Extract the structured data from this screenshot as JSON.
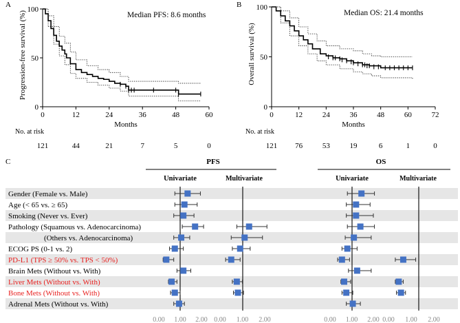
{
  "chart_data": [
    {
      "type": "line",
      "panel": "A",
      "title": "Median PFS: 8.6 months",
      "xlabel": "Months",
      "ylabel": "Progression-free survival (%)",
      "xlim": [
        0,
        60
      ],
      "ylim": [
        0,
        100
      ],
      "xticks": [
        0,
        12,
        24,
        36,
        48,
        60
      ],
      "yticks": [
        0,
        50,
        100
      ],
      "series": [
        {
          "name": "PFS",
          "style": "solid",
          "x": [
            0,
            1,
            2,
            3,
            4,
            5,
            6,
            7,
            8,
            8.6,
            10,
            12,
            14,
            16,
            18,
            20,
            22,
            24,
            26,
            28,
            30,
            31,
            33,
            36,
            40,
            44,
            48,
            49,
            50,
            52,
            57
          ],
          "y": [
            100,
            95,
            88,
            80,
            73,
            67,
            62,
            58,
            54,
            50,
            44,
            38,
            35,
            33,
            31,
            29,
            28,
            26,
            24,
            23,
            21,
            17,
            17,
            17,
            17,
            17,
            17,
            13,
            13,
            13,
            13
          ]
        },
        {
          "name": "95% CI upper",
          "style": "dotted",
          "x": [
            0,
            2,
            4,
            6,
            8,
            10,
            12,
            16,
            20,
            24,
            28,
            31,
            36,
            44,
            48,
            49,
            52,
            57
          ],
          "y": [
            100,
            93,
            82,
            72,
            65,
            56,
            48,
            42,
            38,
            35,
            31,
            26,
            26,
            26,
            26,
            24,
            24,
            24
          ]
        },
        {
          "name": "95% CI lower",
          "style": "dotted",
          "x": [
            0,
            2,
            4,
            6,
            8,
            10,
            12,
            16,
            20,
            24,
            28,
            31,
            36,
            44,
            48,
            49,
            52,
            57
          ],
          "y": [
            100,
            82,
            64,
            52,
            43,
            34,
            29,
            25,
            22,
            19,
            16,
            11,
            11,
            11,
            11,
            6,
            6,
            6
          ]
        }
      ],
      "censor_ticks": {
        "x": [
          28,
          30,
          31,
          32,
          33,
          40,
          48,
          49,
          57
        ],
        "y": [
          23,
          21,
          17,
          17,
          17,
          17,
          17,
          13,
          13
        ]
      },
      "risk_table": {
        "label": "No. at risk",
        "times": [
          0,
          12,
          24,
          36,
          48,
          60
        ],
        "counts": [
          "121",
          "44",
          "21",
          "7",
          "5",
          "0"
        ]
      }
    },
    {
      "type": "line",
      "panel": "B",
      "title": "Median OS: 21.4 months",
      "xlabel": "Months",
      "ylabel": "Overall survival (%)",
      "xlim": [
        0,
        72
      ],
      "ylim": [
        0,
        100
      ],
      "xticks": [
        0,
        12,
        24,
        36,
        48,
        60,
        72
      ],
      "yticks": [
        0,
        50,
        100
      ],
      "series": [
        {
          "name": "OS",
          "style": "solid",
          "x": [
            0,
            2,
            4,
            6,
            8,
            10,
            12,
            14,
            16,
            18,
            21.4,
            24,
            27,
            30,
            33,
            36,
            40,
            43,
            48,
            52,
            56,
            62
          ],
          "y": [
            100,
            96,
            91,
            86,
            81,
            76,
            71,
            67,
            63,
            58,
            53,
            51,
            49,
            48,
            46,
            44,
            42,
            41,
            39,
            39,
            39,
            39
          ]
        },
        {
          "name": "95% CI upper",
          "style": "dotted",
          "x": [
            0,
            4,
            8,
            12,
            16,
            20,
            24,
            30,
            36,
            40,
            44,
            48,
            62
          ],
          "y": [
            100,
            96,
            89,
            80,
            73,
            66,
            61,
            58,
            56,
            53,
            51,
            50,
            50
          ]
        },
        {
          "name": "95% CI lower",
          "style": "dotted",
          "x": [
            0,
            4,
            8,
            12,
            16,
            20,
            24,
            30,
            36,
            40,
            44,
            48,
            62
          ],
          "y": [
            100,
            84,
            71,
            61,
            53,
            46,
            42,
            38,
            35,
            33,
            31,
            29,
            28
          ]
        }
      ],
      "censor_ticks": {
        "x": [
          25,
          27,
          28,
          30,
          31,
          33,
          35,
          36,
          38,
          40,
          41,
          42,
          43,
          45,
          47,
          50,
          52,
          54,
          56,
          58,
          60,
          62
        ],
        "y": [
          50,
          49,
          49,
          48,
          47,
          46,
          45,
          44,
          43,
          42,
          42,
          41,
          41,
          40,
          40,
          39,
          39,
          39,
          39,
          39,
          39,
          39
        ]
      },
      "risk_table": {
        "label": "No. at risk",
        "times": [
          0,
          12,
          24,
          36,
          48,
          60,
          72
        ],
        "counts": [
          "121",
          "76",
          "53",
          "19",
          "6",
          "1",
          "0"
        ]
      }
    },
    {
      "type": "forest",
      "panel": "C",
      "groups": [
        "PFS",
        "OS"
      ],
      "subheaders": [
        "Univariate",
        "Multivariate"
      ],
      "xticks": [
        "0.00",
        "1.00",
        "2.00"
      ],
      "reference": 1.0,
      "rows": [
        {
          "label": "Gender (Female vs. Male)",
          "highlight": false,
          "pfs_uni": [
            1.35,
            0.75,
            1.95
          ],
          "pfs_multi": null,
          "os_uni": [
            1.45,
            0.8,
            2.05
          ],
          "os_multi": null
        },
        {
          "label": "Age (< 65 vs. ≥ 65)",
          "highlight": false,
          "pfs_uni": [
            1.2,
            0.75,
            1.8
          ],
          "pfs_multi": null,
          "os_uni": [
            1.2,
            0.75,
            1.85
          ],
          "os_multi": null
        },
        {
          "label": "Smoking (Never vs. Ever)",
          "highlight": false,
          "pfs_uni": [
            1.15,
            0.7,
            1.65
          ],
          "pfs_multi": null,
          "os_uni": [
            1.2,
            0.75,
            2.0
          ],
          "os_multi": null
        },
        {
          "label": "Pathology (Squamous vs. Adenocarcinoma)",
          "highlight": false,
          "pfs_uni": [
            1.7,
            1.1,
            2.1
          ],
          "pfs_multi": [
            1.3,
            0.75,
            2.1
          ],
          "os_uni": [
            1.4,
            0.8,
            2.05
          ],
          "os_multi": null
        },
        {
          "label": "(Others vs. Adenocarcinoma)",
          "highlight": false,
          "indent": true,
          "pfs_uni": [
            1.05,
            0.7,
            1.45
          ],
          "pfs_multi": [
            1.1,
            0.5,
            1.9
          ],
          "os_uni": [
            1.1,
            0.7,
            1.9
          ],
          "os_multi": null
        },
        {
          "label": "ECOG PS (0-1 vs. 2)",
          "highlight": false,
          "pfs_uni": [
            0.75,
            0.5,
            1.15
          ],
          "pfs_multi": [
            0.9,
            0.55,
            1.35
          ],
          "os_uni": [
            0.8,
            0.55,
            1.25
          ],
          "os_multi": null
        },
        {
          "label": "PD-L1 (TPS ≥ 50% vs. TPS < 50%)",
          "highlight": true,
          "pfs_uni": [
            0.35,
            0.2,
            0.7
          ],
          "pfs_multi": [
            0.5,
            0.25,
            0.9
          ],
          "os_uni": [
            0.55,
            0.35,
            0.9
          ],
          "os_multi": [
            0.65,
            0.3,
            1.2
          ]
        },
        {
          "label": "Brain Mets (Without vs. With)",
          "highlight": false,
          "pfs_uni": [
            1.15,
            0.85,
            1.5
          ],
          "pfs_multi": null,
          "os_uni": [
            1.25,
            0.85,
            1.9
          ],
          "os_multi": null
        },
        {
          "label": "Liver Mets (Without vs. With)",
          "highlight": true,
          "pfs_uni": [
            0.6,
            0.45,
            0.85
          ],
          "pfs_multi": [
            0.75,
            0.55,
            1.0
          ],
          "os_uni": [
            0.65,
            0.5,
            0.95
          ],
          "os_multi": [
            0.45,
            0.3,
            0.65
          ]
        },
        {
          "label": "Bone Mets (Without vs. With)",
          "highlight": true,
          "pfs_uni": [
            0.75,
            0.55,
            1.0
          ],
          "pfs_multi": [
            0.8,
            0.6,
            1.05
          ],
          "os_uni": [
            0.75,
            0.55,
            1.05
          ],
          "os_multi": [
            0.55,
            0.35,
            0.75
          ]
        },
        {
          "label": "Adrenal Mets (Without vs. With)",
          "highlight": false,
          "pfs_uni": [
            0.95,
            0.7,
            1.2
          ],
          "pfs_multi": null,
          "os_uni": [
            1.05,
            0.75,
            1.4
          ],
          "os_multi": null
        }
      ]
    }
  ],
  "colors": {
    "marker": "#4472c4",
    "highlight_text": "#e8201f",
    "stripe": "#e6e6e6",
    "line": "#000000"
  }
}
